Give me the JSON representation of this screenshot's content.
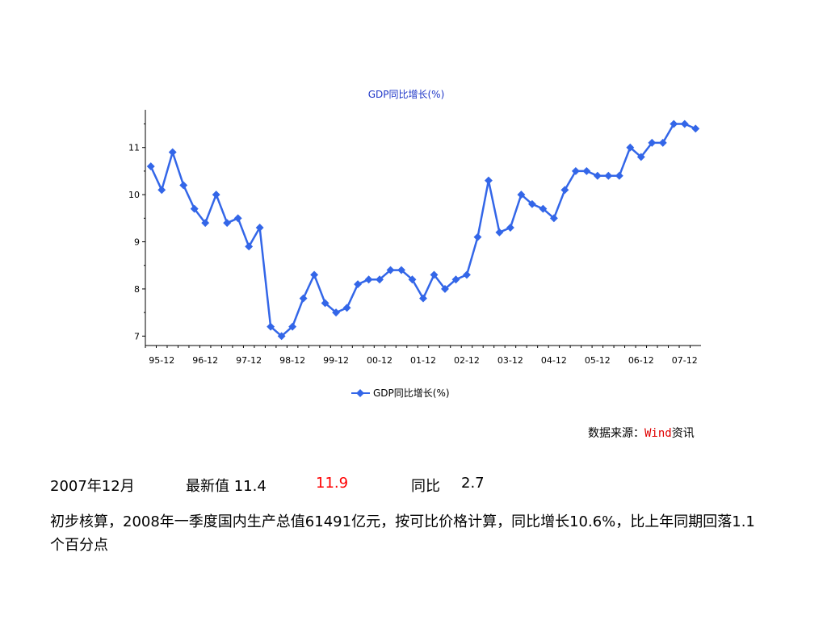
{
  "chart_data": {
    "type": "line",
    "title": "GDP同比增长(%)",
    "x_tick_labels": [
      "95-12",
      "96-12",
      "97-12",
      "98-12",
      "99-12",
      "00-12",
      "01-12",
      "02-12",
      "03-12",
      "04-12",
      "05-12",
      "06-12",
      "07-12"
    ],
    "y_ticks": [
      7,
      8,
      9,
      10,
      11
    ],
    "ylim": [
      6.8,
      11.8
    ],
    "legend": "bottom-center",
    "grid": false,
    "line_color": "#3366e8",
    "series": [
      {
        "name": "GDP同比增长(%)",
        "values": [
          10.6,
          10.1,
          10.9,
          10.2,
          9.7,
          9.4,
          10.0,
          9.4,
          9.5,
          8.9,
          9.3,
          7.2,
          7.0,
          7.2,
          7.8,
          8.3,
          7.7,
          7.5,
          7.6,
          8.1,
          8.2,
          8.2,
          8.4,
          8.4,
          8.2,
          7.8,
          8.3,
          8.0,
          8.2,
          8.3,
          9.1,
          10.3,
          9.2,
          9.3,
          10.0,
          9.8,
          9.7,
          9.5,
          10.1,
          10.5,
          10.5,
          10.4,
          10.4,
          10.4,
          11.0,
          10.8,
          11.1,
          11.1,
          11.5,
          11.5,
          11.4
        ]
      }
    ]
  },
  "source": {
    "prefix": "数据来源：",
    "brand": "Wind",
    "suffix": "资讯"
  },
  "summary": {
    "date": "2007年12月",
    "latest_label": "最新值 11.4",
    "value2": "11.9",
    "yoy_label": "同比",
    "yoy_value": "2.7"
  },
  "description": "初步核算，2008年一季度国内生产总值61491亿元，按可比价格计算，同比增长10.6%，比上年同期回落1.1个百分点"
}
